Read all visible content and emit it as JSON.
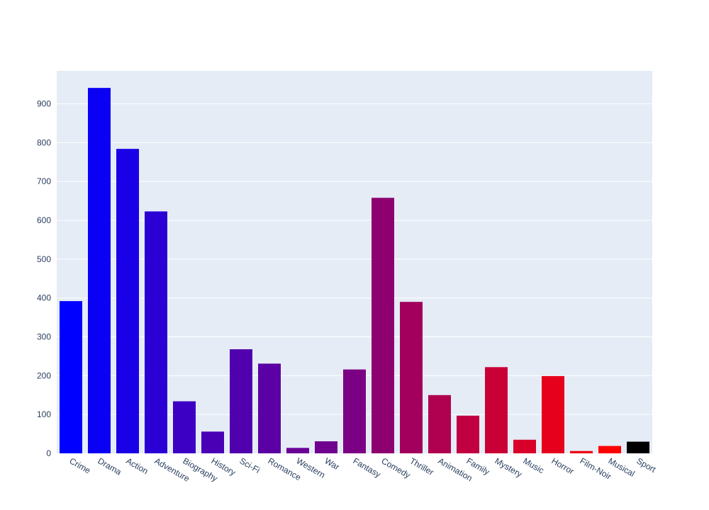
{
  "chart_data": {
    "type": "bar",
    "title": "",
    "xlabel": "",
    "ylabel": "",
    "ylim": [
      0,
      985
    ],
    "yticks": [
      0,
      100,
      200,
      300,
      400,
      500,
      600,
      700,
      800,
      900
    ],
    "grid": true,
    "categories": [
      "Crime",
      "Drama",
      "Action",
      "Adventure",
      "Biography",
      "History",
      "Sci-Fi",
      "Romance",
      "Western",
      "War",
      "Fantasy",
      "Comedy",
      "Thriller",
      "Animation",
      "Family",
      "Mystery",
      "Music",
      "Horror",
      "Film-Noir",
      "Musical",
      "Sport"
    ],
    "values": [
      392,
      941,
      784,
      623,
      134,
      56,
      268,
      231,
      14,
      31,
      216,
      658,
      390,
      150,
      97,
      222,
      35,
      199,
      6,
      19,
      30
    ],
    "colors": [
      "#0000ff",
      "#0a00f4",
      "#1900e6",
      "#2a00d5",
      "#3b00c4",
      "#4a00b5",
      "#5000ad",
      "#5b00a4",
      "#6a0095",
      "#700090",
      "#7c0083",
      "#8e0070",
      "#a2005c",
      "#b00050",
      "#c00040",
      "#c90036",
      "#d8002a",
      "#e6001c",
      "#ec0012",
      "#ff0000",
      "#000000"
    ],
    "plot_bg": "#e5ecf6",
    "grid_color": "#ffffff"
  }
}
